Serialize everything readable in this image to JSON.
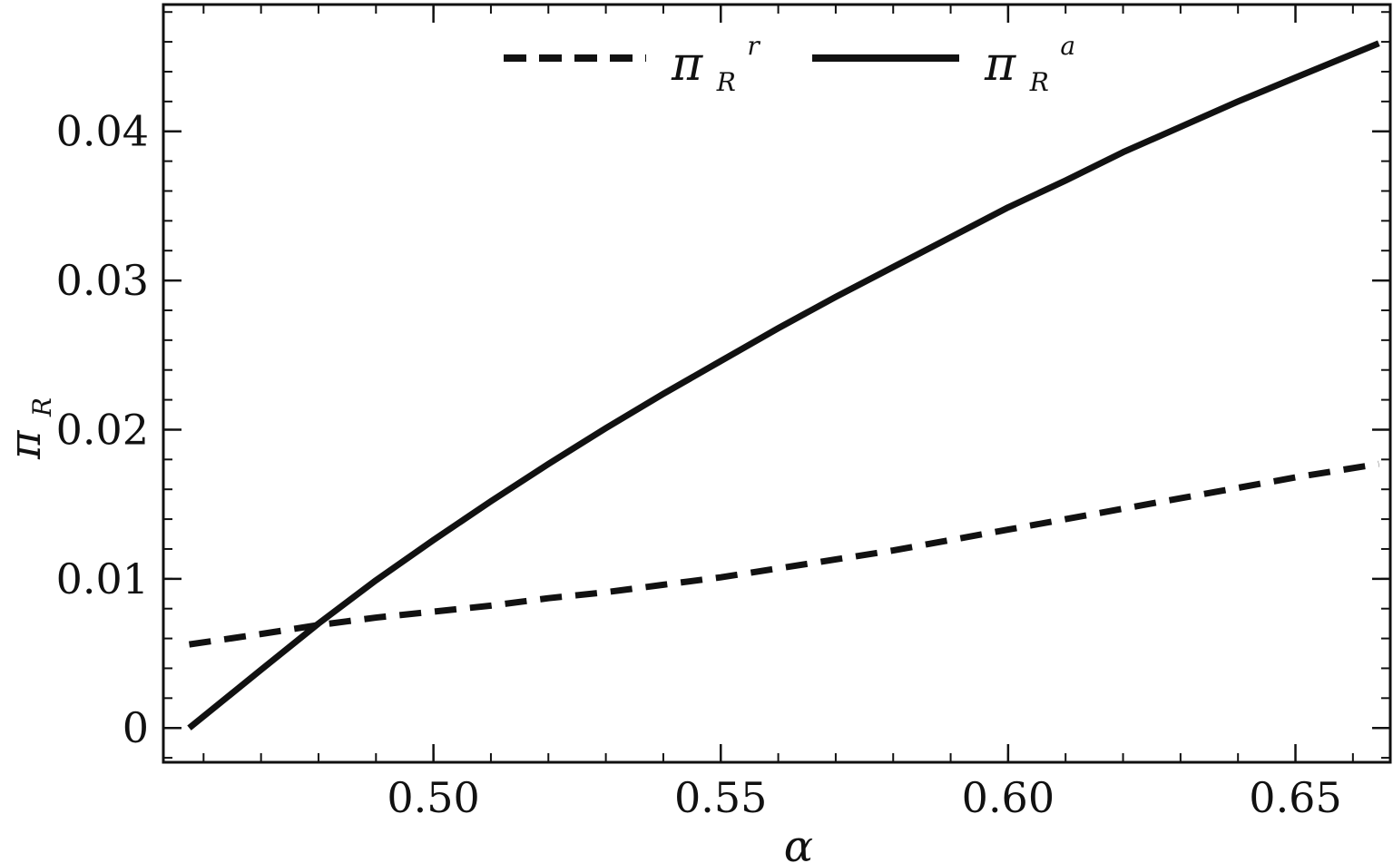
{
  "chart_data": {
    "type": "line",
    "title": "",
    "xlabel": "α",
    "ylabel": {
      "symbol": "π",
      "subscript": "R"
    },
    "xlim": [
      0.453,
      0.6665
    ],
    "ylim": [
      -0.0023,
      0.0485
    ],
    "x_ticks": [
      {
        "value": 0.5,
        "label": "0.50"
      },
      {
        "value": 0.55,
        "label": "0.55"
      },
      {
        "value": 0.6,
        "label": "0.60"
      },
      {
        "value": 0.65,
        "label": "0.65"
      }
    ],
    "y_ticks": [
      {
        "value": 0,
        "label": "0"
      },
      {
        "value": 0.01,
        "label": "0.01"
      },
      {
        "value": 0.02,
        "label": "0.02"
      },
      {
        "value": 0.03,
        "label": "0.03"
      },
      {
        "value": 0.04,
        "label": "0.04"
      }
    ],
    "x_minor_step": 0.01,
    "y_minor_step": 0.002,
    "grid": false,
    "legend": {
      "placement": "top-center",
      "orientation": "horizontal"
    },
    "series": [
      {
        "name": {
          "symbol": "π",
          "subscript": "R",
          "superscript": "r"
        },
        "style": "dashed",
        "color": "#111111",
        "x": [
          0.4575,
          0.47,
          0.48,
          0.49,
          0.5,
          0.51,
          0.52,
          0.53,
          0.54,
          0.55,
          0.56,
          0.57,
          0.58,
          0.59,
          0.6,
          0.61,
          0.62,
          0.63,
          0.64,
          0.65,
          0.6645
        ],
        "y": [
          0.0056,
          0.0063,
          0.0069,
          0.0074,
          0.0078,
          0.0082,
          0.0087,
          0.0091,
          0.0096,
          0.0101,
          0.0107,
          0.0113,
          0.0119,
          0.0126,
          0.0133,
          0.014,
          0.0147,
          0.0154,
          0.0161,
          0.0168,
          0.0177
        ]
      },
      {
        "name": {
          "symbol": "π",
          "subscript": "R",
          "superscript": "a"
        },
        "style": "solid",
        "color": "#111111",
        "x": [
          0.4575,
          0.47,
          0.48,
          0.49,
          0.5,
          0.51,
          0.52,
          0.53,
          0.54,
          0.55,
          0.56,
          0.57,
          0.58,
          0.59,
          0.6,
          0.61,
          0.62,
          0.63,
          0.64,
          0.65,
          0.6645
        ],
        "y": [
          0.0,
          0.0039,
          0.007,
          0.0099,
          0.0126,
          0.0152,
          0.0177,
          0.0201,
          0.0224,
          0.0246,
          0.0268,
          0.0289,
          0.0309,
          0.0329,
          0.0349,
          0.0367,
          0.0386,
          0.0403,
          0.042,
          0.0436,
          0.0459
        ]
      }
    ]
  }
}
